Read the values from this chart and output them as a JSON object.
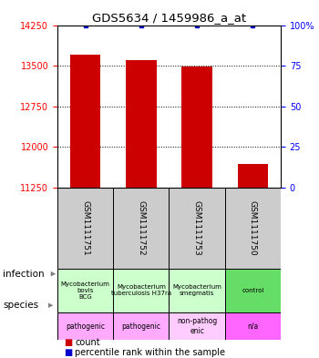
{
  "title": "GDS5634 / 1459986_a_at",
  "samples": [
    "GSM1111751",
    "GSM1111752",
    "GSM1111753",
    "GSM1111750"
  ],
  "counts": [
    13700,
    13600,
    13480,
    11680
  ],
  "percentile_ranks": [
    100,
    100,
    100,
    100
  ],
  "ylim": [
    11250,
    14250
  ],
  "yticks": [
    11250,
    12000,
    12750,
    13500,
    14250
  ],
  "ytick_labels_left": [
    "11250",
    "12000",
    "12750",
    "13500",
    "14250"
  ],
  "ytick_labels_right": [
    "0",
    "25",
    "50",
    "75",
    "100%"
  ],
  "bar_color": "#cc0000",
  "percentile_color": "#0000cc",
  "infection_labels": [
    "Mycobacterium\nbovis\nBCG",
    "Mycobacterium\ntuberculosis H37ra",
    "Mycobacterium\nsmegmatis",
    "control"
  ],
  "infection_colors": [
    "#ccffcc",
    "#ccffcc",
    "#ccffcc",
    "#66dd66"
  ],
  "species_labels": [
    "pathogenic",
    "pathogenic",
    "non-pathog\nenic",
    "n/a"
  ],
  "species_colors": [
    "#ffaaff",
    "#ffaaff",
    "#ffccff",
    "#ff66ff"
  ],
  "sample_bg_color": "#cccccc",
  "legend_count": "count",
  "legend_percentile": "percentile rank within the sample",
  "bar_width": 0.55
}
